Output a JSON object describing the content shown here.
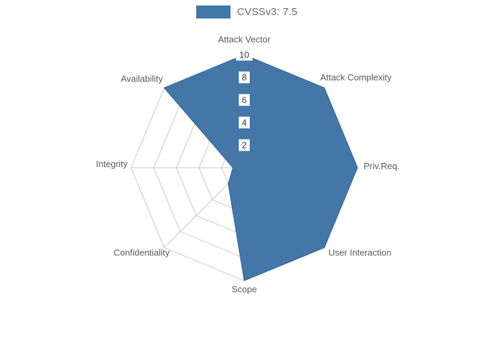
{
  "legend": {
    "label": "CVSSv3: 7.5"
  },
  "colors": {
    "series_fill": "#4477a8",
    "series_stroke": "#3a6a99",
    "grid": "#c8c8c8",
    "tick_text": "#3a3a3a",
    "axis_label": "#595959",
    "background": "#ffffff"
  },
  "chart_data": {
    "type": "radar",
    "title": "CVSSv3: 7.5",
    "categories": [
      "Attack Vector",
      "Attack Complexity",
      "Priv.Req.",
      "User Interaction",
      "Scope",
      "Confidentiality",
      "Integrity",
      "Availability"
    ],
    "series": [
      {
        "name": "CVSSv3: 7.5",
        "values": [
          10,
          10,
          10,
          10,
          10,
          2,
          1,
          10
        ]
      }
    ],
    "radial_ticks": [
      2,
      4,
      6,
      8,
      10
    ],
    "rmax": 10,
    "grid": true,
    "legend_position": "top"
  }
}
